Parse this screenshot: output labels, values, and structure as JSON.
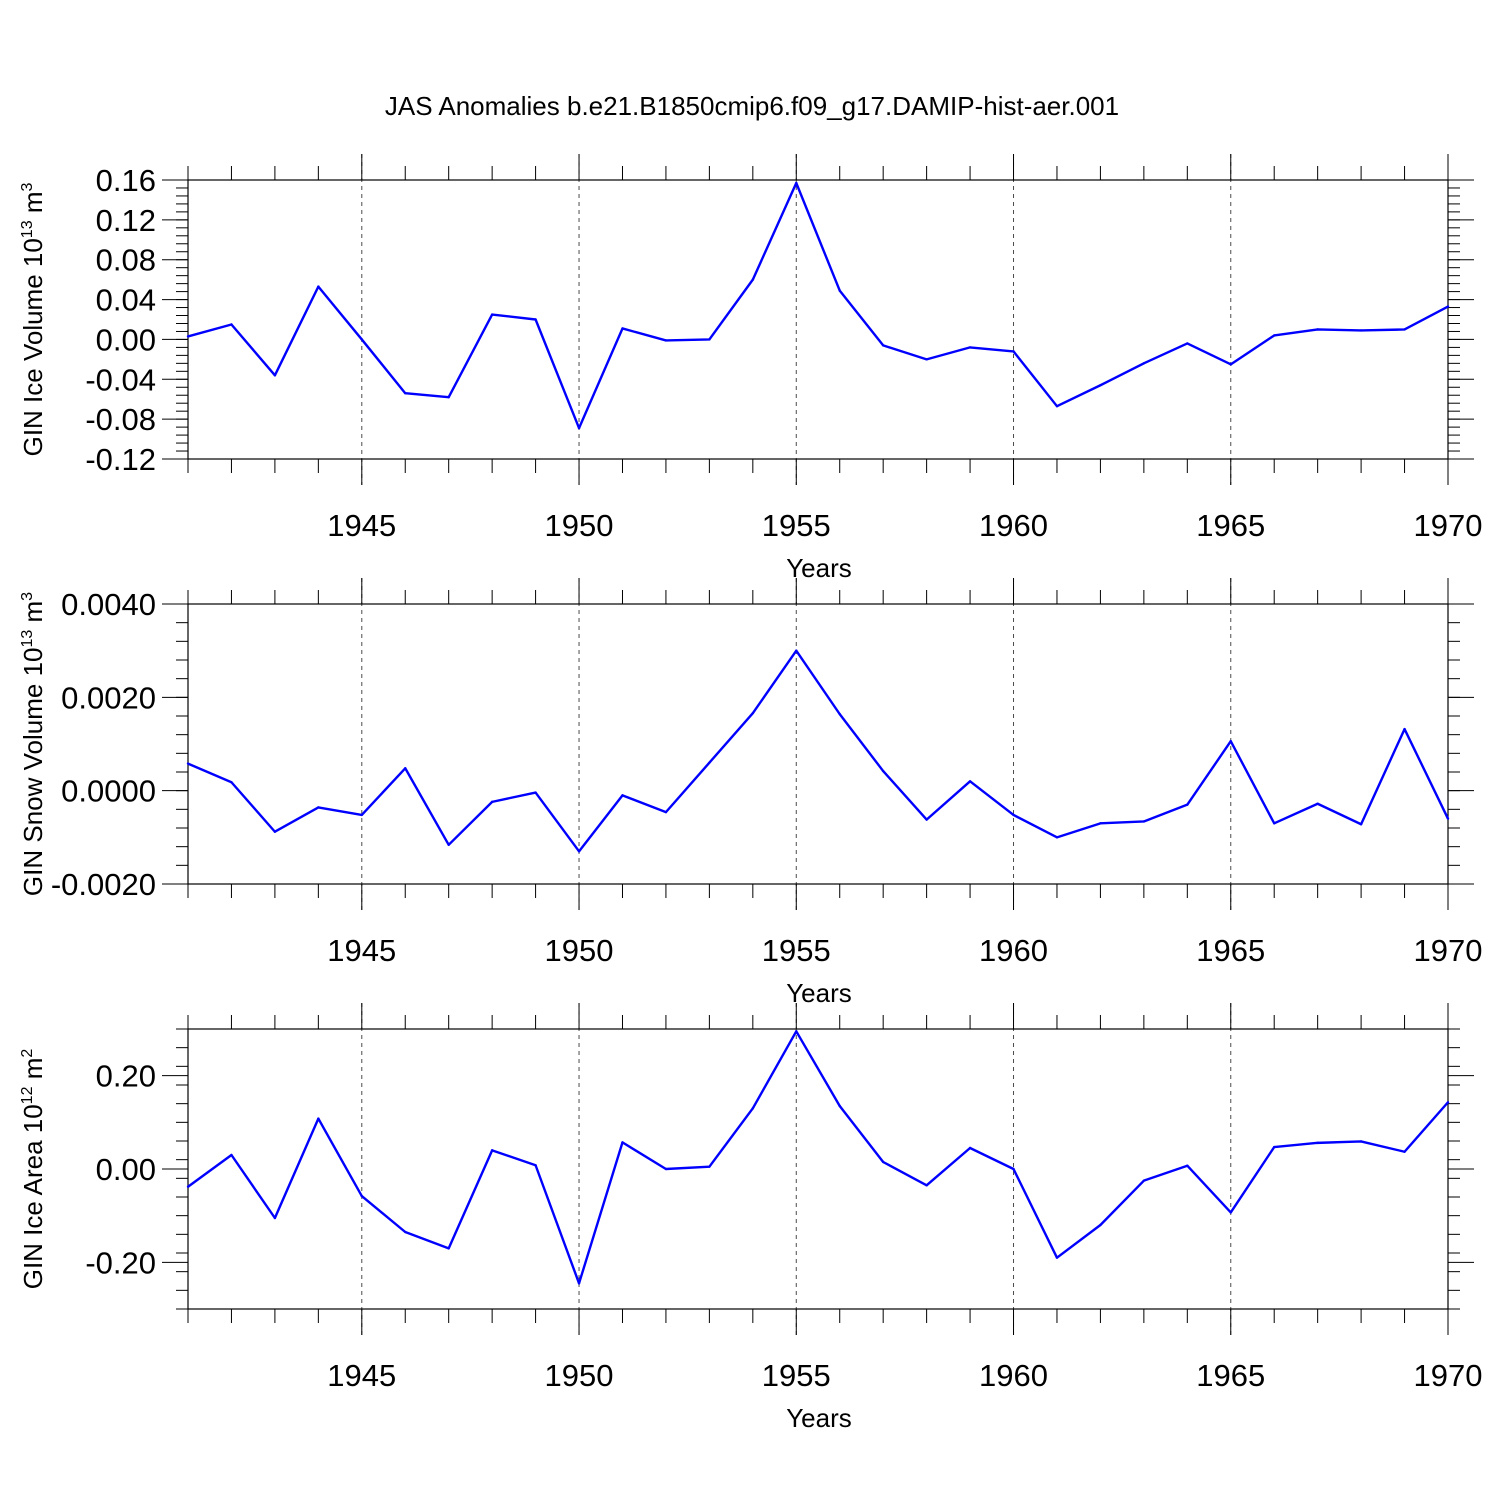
{
  "figure_title": "JAS Anomalies b.e21.B1850cmip6.f09_g17.DAMIP-hist-aer.001",
  "line_color": "#0000ff",
  "chart_data": [
    {
      "type": "line",
      "ylabel_text": "GIN Ice Volume 10",
      "ylabel_sup": "13",
      "ylabel_unit": "m",
      "ylabel_unit_sup": "3",
      "xlabel": "Years",
      "xlim": [
        1941,
        1970
      ],
      "ylim": [
        -0.12,
        0.16
      ],
      "yticks": [
        -0.12,
        -0.08,
        -0.04,
        0.0,
        0.04,
        0.08,
        0.12,
        0.16
      ],
      "ytick_labels": [
        "-0.12",
        "-0.08",
        "-0.04",
        "0.00",
        "0.04",
        "0.08",
        "0.12",
        "0.16"
      ],
      "xticks": [
        1945,
        1950,
        1955,
        1960,
        1965,
        1970
      ],
      "xtick_labels": [
        "1945",
        "1950",
        "1955",
        "1960",
        "1965",
        "1970"
      ],
      "x": [
        1941,
        1942,
        1943,
        1944,
        1945,
        1946,
        1947,
        1948,
        1949,
        1950,
        1951,
        1952,
        1953,
        1954,
        1955,
        1956,
        1957,
        1958,
        1959,
        1960,
        1961,
        1962,
        1963,
        1964,
        1965,
        1966,
        1967,
        1968,
        1969,
        1970
      ],
      "values": [
        0.003,
        0.015,
        -0.036,
        0.053,
        0.0,
        -0.054,
        -0.058,
        0.025,
        0.02,
        -0.089,
        0.011,
        -0.001,
        0.0,
        0.06,
        0.157,
        0.049,
        -0.006,
        -0.02,
        -0.008,
        -0.012,
        -0.067,
        -0.046,
        -0.024,
        -0.004,
        -0.025,
        0.004,
        0.01,
        0.009,
        0.01,
        0.033
      ]
    },
    {
      "type": "line",
      "ylabel_text": "GIN Snow Volume 10",
      "ylabel_sup": "13",
      "ylabel_unit": "m",
      "ylabel_unit_sup": "3",
      "xlabel": "Years",
      "xlim": [
        1941,
        1970
      ],
      "ylim": [
        -0.002,
        0.004
      ],
      "yticks": [
        -0.002,
        0.0,
        0.002,
        0.004
      ],
      "ytick_labels": [
        "-0.0020",
        "0.0000",
        "0.0020",
        "0.0040"
      ],
      "xticks": [
        1945,
        1950,
        1955,
        1960,
        1965,
        1970
      ],
      "xtick_labels": [
        "1945",
        "1950",
        "1955",
        "1960",
        "1965",
        "1970"
      ],
      "x": [
        1941,
        1942,
        1943,
        1944,
        1945,
        1946,
        1947,
        1948,
        1949,
        1950,
        1951,
        1952,
        1953,
        1954,
        1955,
        1956,
        1957,
        1958,
        1959,
        1960,
        1961,
        1962,
        1963,
        1964,
        1965,
        1966,
        1967,
        1968,
        1969,
        1970
      ],
      "values": [
        0.00058,
        0.00018,
        -0.00088,
        -0.00036,
        -0.00052,
        0.00048,
        -0.00116,
        -0.00024,
        -4e-05,
        -0.0013,
        -0.0001,
        -0.00046,
        0.0006,
        0.00166,
        0.003,
        0.00164,
        0.00042,
        -0.00062,
        0.0002,
        -0.00052,
        -0.001,
        -0.0007,
        -0.00066,
        -0.0003,
        0.00106,
        -0.0007,
        -0.00028,
        -0.00072,
        0.00132,
        -0.0006
      ]
    },
    {
      "type": "line",
      "ylabel_text": "GIN Ice Area 10",
      "ylabel_sup": "12",
      "ylabel_unit": "m",
      "ylabel_unit_sup": "2",
      "xlabel": "Years",
      "xlim": [
        1941,
        1970
      ],
      "ylim": [
        -0.3,
        0.3
      ],
      "yticks": [
        -0.2,
        0.0,
        0.2
      ],
      "ytick_labels": [
        "-0.20",
        "0.00",
        "0.20"
      ],
      "xticks": [
        1945,
        1950,
        1955,
        1960,
        1965,
        1970
      ],
      "xtick_labels": [
        "1945",
        "1950",
        "1955",
        "1960",
        "1965",
        "1970"
      ],
      "x": [
        1941,
        1942,
        1943,
        1944,
        1945,
        1946,
        1947,
        1948,
        1949,
        1950,
        1951,
        1952,
        1953,
        1954,
        1955,
        1956,
        1957,
        1958,
        1959,
        1960,
        1961,
        1962,
        1963,
        1964,
        1965,
        1966,
        1967,
        1968,
        1969,
        1970
      ],
      "values": [
        -0.038,
        0.03,
        -0.105,
        0.108,
        -0.058,
        -0.135,
        -0.17,
        0.04,
        0.008,
        -0.245,
        0.057,
        0.0,
        0.005,
        0.13,
        0.295,
        0.135,
        0.015,
        -0.035,
        0.045,
        0.0,
        -0.19,
        -0.12,
        -0.025,
        0.007,
        -0.093,
        0.047,
        0.056,
        0.059,
        0.037,
        0.143
      ]
    }
  ]
}
